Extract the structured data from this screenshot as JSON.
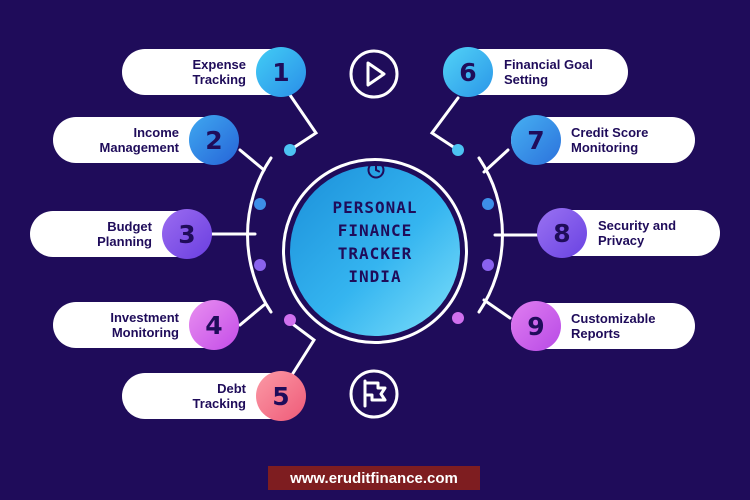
{
  "hub": {
    "title": "PERSONAL\nFINANCE\nTRACKER\nINDIA",
    "icon": "clock-icon"
  },
  "items": [
    {
      "number": "1",
      "label": "Expense\nTracking",
      "side": "left",
      "gradient": [
        "#42cdf5",
        "#2a8ee8"
      ]
    },
    {
      "number": "2",
      "label": "Income\nManagement",
      "side": "left",
      "gradient": [
        "#3fa8f0",
        "#2664d8"
      ]
    },
    {
      "number": "3",
      "label": "Budget\nPlanning",
      "side": "left",
      "gradient": [
        "#9b6cf0",
        "#6a3ee0"
      ]
    },
    {
      "number": "4",
      "label": "Investment\nMonitoring",
      "side": "left",
      "gradient": [
        "#e88ff0",
        "#c44ce8"
      ]
    },
    {
      "number": "5",
      "label": "Debt\nTracking",
      "side": "left",
      "gradient": [
        "#fb9aa6",
        "#ef5a78"
      ]
    },
    {
      "number": "6",
      "label": "Financial Goal\nSetting",
      "side": "right",
      "gradient": [
        "#52d3f7",
        "#2a96e8"
      ]
    },
    {
      "number": "7",
      "label": "Credit Score\nMonitoring",
      "side": "right",
      "gradient": [
        "#46b0f2",
        "#2c72dc"
      ]
    },
    {
      "number": "8",
      "label": "Security and\nPrivacy",
      "side": "right",
      "gradient": [
        "#9a72f2",
        "#6942e2"
      ]
    },
    {
      "number": "9",
      "label": "Customizable\nReports",
      "side": "right",
      "gradient": [
        "#e07ef0",
        "#b84ae6"
      ]
    }
  ],
  "icons": {
    "top": "play-icon",
    "bottom": "flag-icon"
  },
  "footer": {
    "text": "www.eruditfinance.com"
  },
  "colors": {
    "background": "#1f0c5a",
    "text": "#1f0c5a",
    "footer": "#7e1d20",
    "hub": "#35b5f0"
  }
}
